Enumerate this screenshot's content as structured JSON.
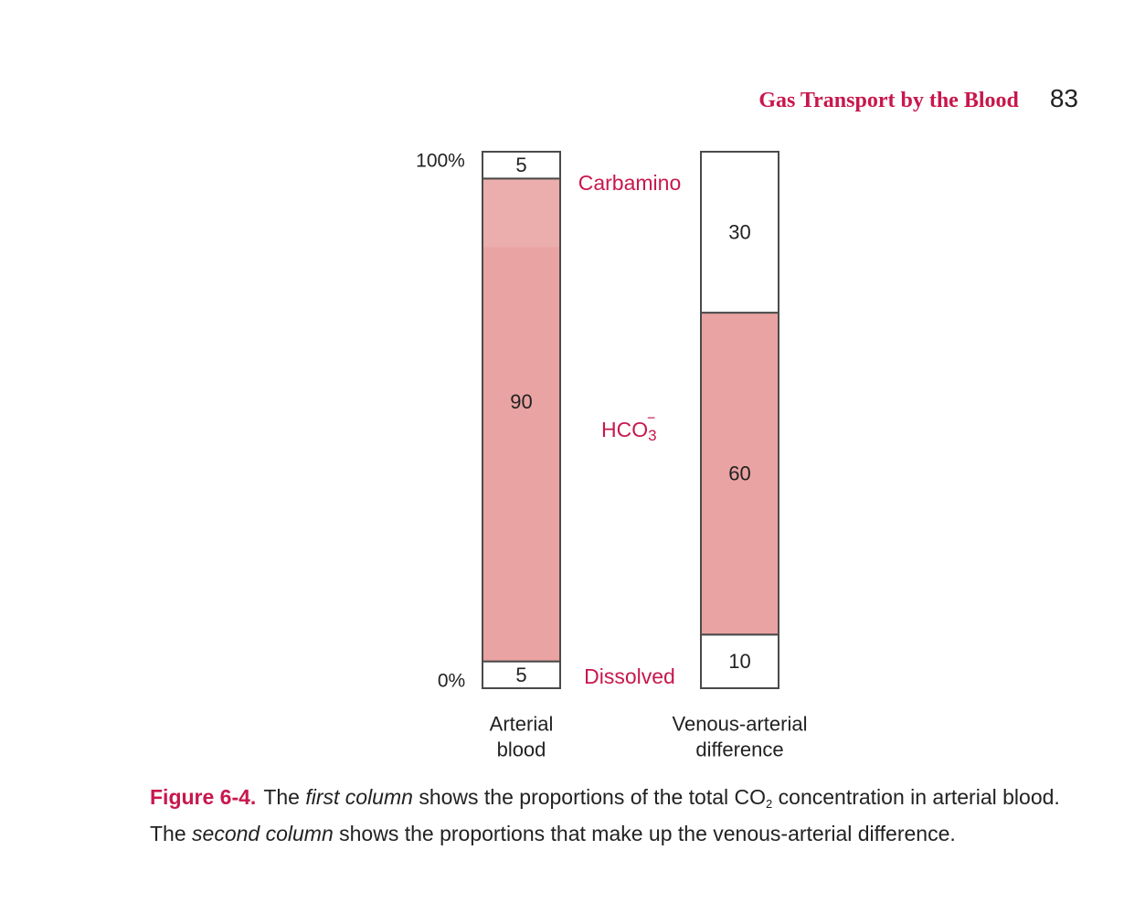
{
  "header": {
    "section_title": "Gas Transport by the Blood",
    "page_number": "83"
  },
  "chart_data": {
    "type": "bar",
    "subtype": "stacked-100-percent",
    "ylim": [
      0,
      100
    ],
    "y_ticks": [
      "0%",
      "100%"
    ],
    "categories": [
      "Arterial blood",
      "Venous-arterial difference"
    ],
    "category_lines": [
      [
        "Arterial",
        "blood"
      ],
      [
        "Venous-arterial",
        "difference"
      ]
    ],
    "series": [
      {
        "name": "Dissolved",
        "values": [
          5,
          10
        ],
        "labels": [
          "5",
          "10"
        ]
      },
      {
        "name": "HCO3−",
        "values": [
          90,
          60
        ],
        "labels": [
          "90",
          "60"
        ]
      },
      {
        "name": "Carbamino",
        "values": [
          5,
          30
        ],
        "labels": [
          "5",
          "30"
        ]
      }
    ],
    "segment_labels": {
      "carbamino": "Carbamino",
      "bicarbonate_base": "HCO",
      "bicarbonate_sub": "3",
      "bicarbonate_sup": "−",
      "dissolved": "Dissolved"
    },
    "colors": {
      "accent": "#c8174d",
      "filled_segment": "#e9a3a2",
      "filled_segment_light": "#ebaeac",
      "empty_segment": "#ffffff",
      "outline": "#4a4a4a"
    }
  },
  "caption": {
    "figure_label": "Figure 6-4.",
    "text_1": "The ",
    "italic_1": "first column",
    "text_2": " shows the proportions of the total CO",
    "subscript": "2",
    "text_3": " concentration in arterial blood. The ",
    "italic_2": "second column",
    "text_4": " shows the proportions that make up the venous-arterial difference."
  }
}
